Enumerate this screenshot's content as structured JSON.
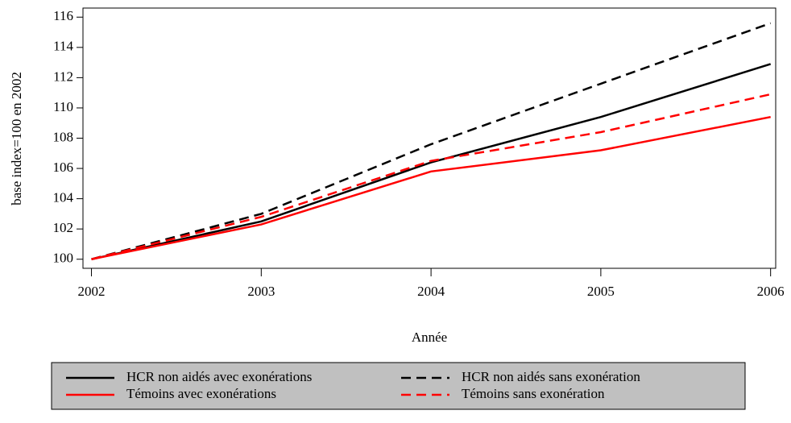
{
  "chart_data": {
    "type": "line",
    "x_label": "Année",
    "y_label": "base index=100 en 2002",
    "x": [
      2002,
      2003,
      2004,
      2005,
      2006
    ],
    "xlim": [
      2001.95,
      2006.03
    ],
    "xticks": [
      2002,
      2003,
      2004,
      2005,
      2006
    ],
    "ylim": [
      99.4,
      116.6
    ],
    "yticks": [
      100,
      102,
      104,
      106,
      108,
      110,
      112,
      114,
      116
    ],
    "legend": "bottom",
    "series": [
      {
        "name": "HCR non aidés avec exonérations",
        "color": "#000000",
        "dashed": false,
        "values": [
          100,
          102.5,
          106.4,
          109.4,
          112.9
        ]
      },
      {
        "name": "HCR non aidés sans exonération",
        "color": "#000000",
        "dashed": true,
        "values": [
          100,
          103.0,
          107.6,
          111.6,
          115.6
        ]
      },
      {
        "name": "Témoins avec exonérations",
        "color": "#ff0000",
        "dashed": false,
        "values": [
          100,
          102.3,
          105.8,
          107.2,
          109.4
        ]
      },
      {
        "name": "Témoins sans exonération",
        "color": "#ff0000",
        "dashed": true,
        "values": [
          100,
          102.8,
          106.5,
          108.4,
          110.9
        ]
      }
    ]
  }
}
